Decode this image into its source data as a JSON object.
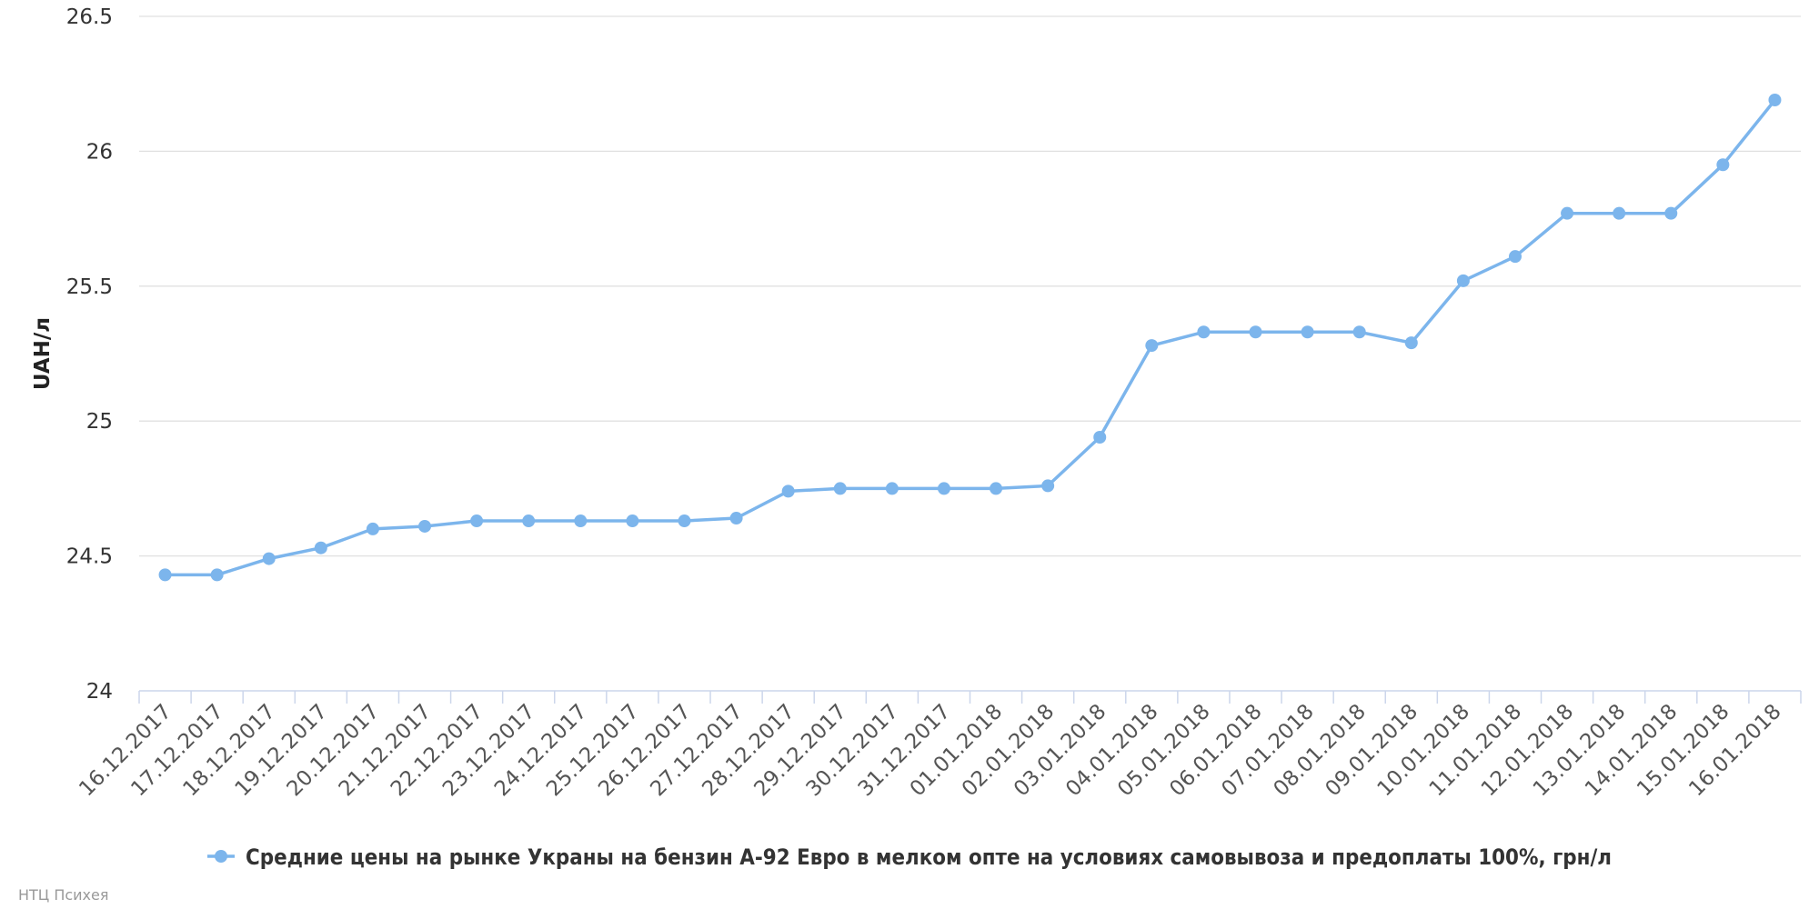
{
  "chart_data": {
    "type": "line",
    "ylabel": "UAH/л",
    "ylim": [
      24,
      26.5
    ],
    "yticks": [
      "24",
      "24.5",
      "25",
      "25.5",
      "26",
      "26.5"
    ],
    "grid": true,
    "legend_position": "bottom-center",
    "categories": [
      "16.12.2017",
      "17.12.2017",
      "18.12.2017",
      "19.12.2017",
      "20.12.2017",
      "21.12.2017",
      "22.12.2017",
      "23.12.2017",
      "24.12.2017",
      "25.12.2017",
      "26.12.2017",
      "27.12.2017",
      "28.12.2017",
      "29.12.2017",
      "30.12.2017",
      "31.12.2017",
      "01.01.2018",
      "02.01.2018",
      "03.01.2018",
      "04.01.2018",
      "05.01.2018",
      "06.01.2018",
      "07.01.2018",
      "08.01.2018",
      "09.01.2018",
      "10.01.2018",
      "11.01.2018",
      "12.01.2018",
      "13.01.2018",
      "14.01.2018",
      "15.01.2018",
      "16.01.2018"
    ],
    "series": [
      {
        "name": "Средние цены на рынке Украны на бензин А-92 Евро в мелком опте на условиях самовывоза и предоплаты 100%, грн/л",
        "color": "#7cb5ec",
        "values": [
          24.43,
          24.43,
          24.49,
          24.53,
          24.6,
          24.61,
          24.63,
          24.63,
          24.63,
          24.63,
          24.63,
          24.64,
          24.74,
          24.75,
          24.75,
          24.75,
          24.75,
          24.76,
          24.94,
          25.28,
          25.33,
          25.33,
          25.33,
          25.33,
          25.29,
          25.52,
          25.61,
          25.77,
          25.77,
          25.77,
          25.95,
          26.19
        ]
      }
    ]
  },
  "credits": "НТЦ Психея"
}
